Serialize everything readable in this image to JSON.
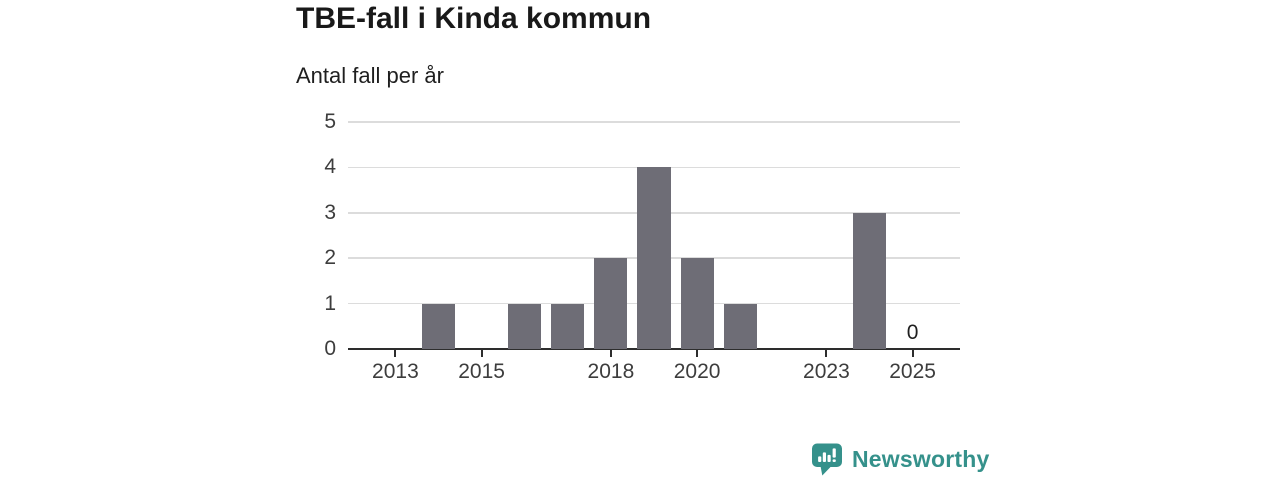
{
  "chart_data": {
    "type": "bar",
    "title": "TBE-fall i Kinda kommun",
    "subtitle": "Antal fall per år",
    "x": [
      2013,
      2014,
      2015,
      2016,
      2017,
      2018,
      2019,
      2020,
      2021,
      2022,
      2023,
      2024,
      2025
    ],
    "values": [
      0,
      1,
      0,
      1,
      1,
      2,
      4,
      2,
      1,
      0,
      0,
      3,
      0
    ],
    "xlabel": "",
    "ylabel": "Antal fall per år",
    "xlim": [
      2011.9,
      2026.1
    ],
    "ylim": [
      0,
      5
    ],
    "yticks": [
      0,
      1,
      2,
      3,
      4,
      5
    ],
    "xticks": [
      2013,
      2015,
      2018,
      2020,
      2023,
      2025
    ],
    "grid": "horizontal-only",
    "legend": "none",
    "annotations": [
      {
        "x": 2025,
        "text": "0"
      }
    ]
  },
  "branding": {
    "logo_text": "Newsworthy",
    "logo_icon": "speech-bubble-with-bar-chart-and-exclamation"
  },
  "colors": {
    "background": "#ffffff",
    "bar": "#6e6d76",
    "grid": "#dcdcdc",
    "axis": "#2d2d2d",
    "title_text": "#191919",
    "axis_text": "#3d3d3d",
    "brand_teal": "#35918b"
  }
}
